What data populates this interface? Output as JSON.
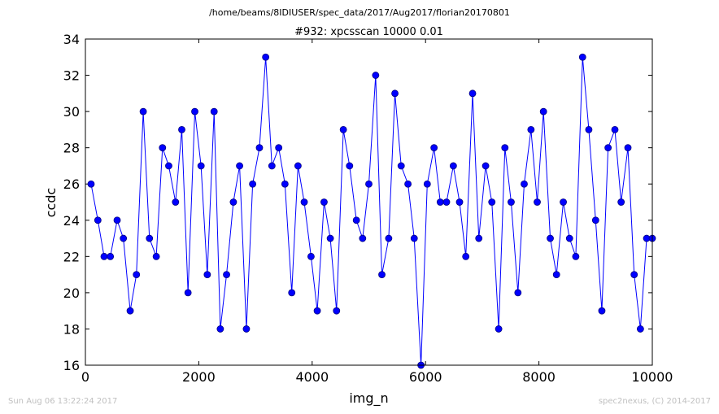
{
  "header": {
    "filepath": "/home/beams/8IDIUSER/spec_data/2017/Aug2017/florian20170801"
  },
  "footer": {
    "timestamp": "Sun Aug 06 13:22:24 2017",
    "credit": "spec2nexus, (C) 2014-2017"
  },
  "colors": {
    "series": "#0000ff",
    "marker_fill": "#0000ff",
    "marker_edge": "#000080",
    "footer_text": "#bfbfbf"
  },
  "chart_data": {
    "type": "line",
    "title": "#932: xpcsscan 10000 0.01",
    "xlabel": "img_n",
    "ylabel": "ccdc",
    "xlim": [
      0,
      10000
    ],
    "ylim": [
      16,
      34
    ],
    "xticks": [
      0,
      2000,
      4000,
      6000,
      8000,
      10000
    ],
    "yticks": [
      16,
      18,
      20,
      22,
      24,
      26,
      28,
      30,
      32,
      34
    ],
    "grid": false,
    "legend": "none",
    "series": [
      {
        "markers": "circle",
        "x": [
          100,
          220,
          330,
          440,
          560,
          670,
          790,
          900,
          1020,
          1130,
          1250,
          1360,
          1470,
          1590,
          1700,
          1810,
          1930,
          2040,
          2150,
          2270,
          2380,
          2490,
          2610,
          2720,
          2840,
          2950,
          3070,
          3180,
          3290,
          3410,
          3520,
          3640,
          3750,
          3860,
          3980,
          4090,
          4210,
          4320,
          4430,
          4550,
          4660,
          4780,
          4890,
          5000,
          5120,
          5230,
          5350,
          5460,
          5570,
          5690,
          5800,
          5920,
          6030,
          6150,
          6260,
          6370,
          6490,
          6600,
          6710,
          6830,
          6940,
          7060,
          7170,
          7290,
          7400,
          7510,
          7630,
          7740,
          7860,
          7970,
          8080,
          8200,
          8310,
          8430,
          8540,
          8650,
          8770,
          8880,
          9000,
          9110,
          9220,
          9340,
          9450,
          9570,
          9680,
          9790,
          9900,
          10000
        ],
        "y": [
          26,
          24,
          22,
          22,
          24,
          23,
          19,
          21,
          30,
          23,
          22,
          28,
          27,
          25,
          29,
          20,
          30,
          27,
          21,
          30,
          18,
          21,
          25,
          27,
          18,
          26,
          28,
          33,
          27,
          28,
          26,
          20,
          27,
          25,
          22,
          19,
          25,
          23,
          19,
          29,
          27,
          24,
          23,
          26,
          32,
          21,
          23,
          31,
          27,
          26,
          23,
          16,
          26,
          28,
          25,
          25,
          27,
          25,
          22,
          31,
          23,
          27,
          25,
          18,
          28,
          25,
          20,
          26,
          29,
          25,
          30,
          23,
          21,
          25,
          23,
          22,
          33,
          29,
          24,
          19,
          28,
          29,
          25,
          28,
          21,
          18,
          23,
          23
        ]
      }
    ]
  }
}
